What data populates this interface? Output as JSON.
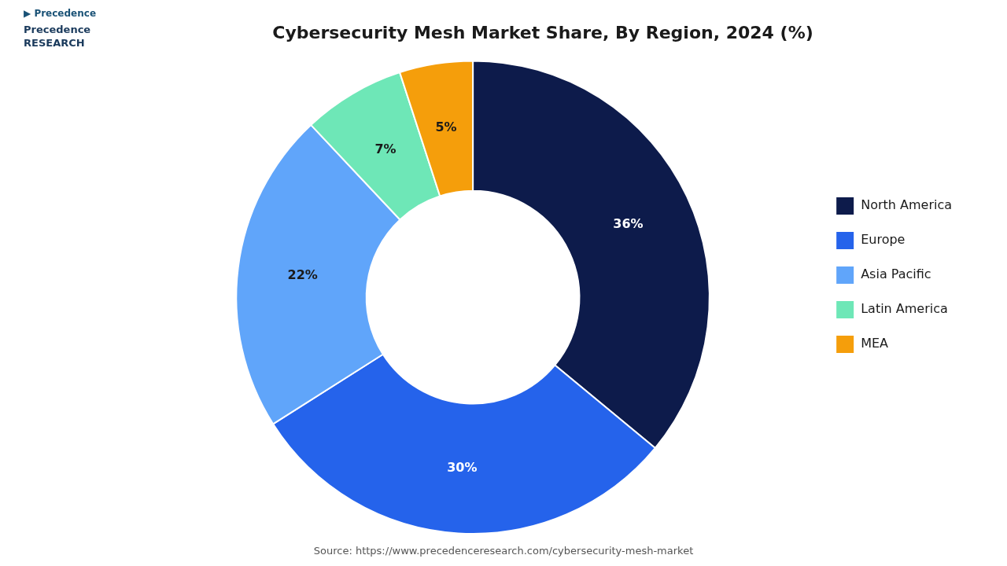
{
  "chart_data": {
    "type": "doughnut",
    "title": "Cybersecurity Mesh Market Share, By Region, 2024 (%)",
    "categories": [
      "North America",
      "Europe",
      "Asia Pacific",
      "Latin America",
      "MEA"
    ],
    "values": [
      36,
      30,
      22,
      7,
      5
    ],
    "value_labels": [
      "36%",
      "30%",
      "22%",
      "7%",
      "5%"
    ],
    "colors": [
      "#0d1b4b",
      "#2563eb",
      "#60a5fa",
      "#6ee7b7",
      "#f59e0b"
    ],
    "data_labels": true,
    "legend": "right",
    "annotations": [
      "▶ Precedence",
      "Precedence\nRESEARCH",
      "Source: https://www.precedenceresearch.com/cybersecurity-mesh-market"
    ]
  }
}
